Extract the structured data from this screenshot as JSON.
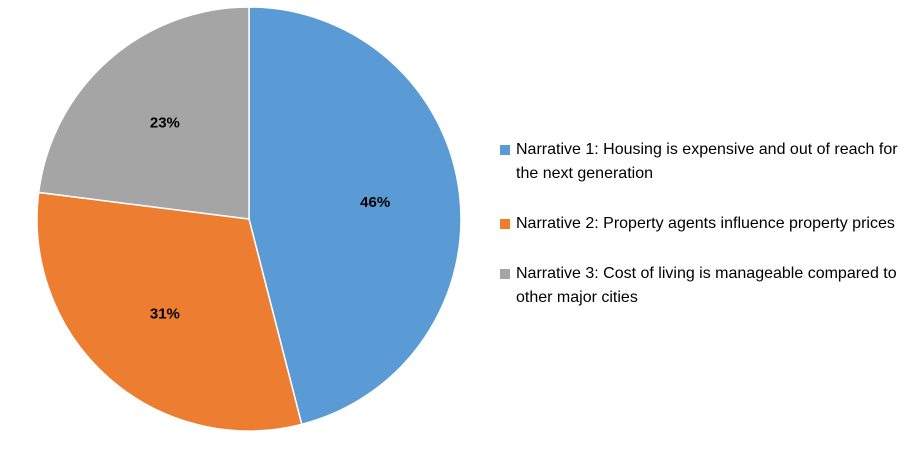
{
  "chart_data": {
    "type": "pie",
    "start_angle_deg": 0,
    "direction": "clockwise",
    "legend_position": "right",
    "slices": [
      {
        "name": "Narrative 1: Housing is expensive and out of reach for the next generation",
        "value": 46,
        "label": "46%",
        "color": "#5B9BD5"
      },
      {
        "name": "Narrative 2: Property agents influence property prices",
        "value": 31,
        "label": "31%",
        "color": "#ED7D31"
      },
      {
        "name": "Narrative 3: Cost of living is manageable compared to other major cities",
        "value": 23,
        "label": "23%",
        "color": "#A5A5A5"
      }
    ]
  }
}
